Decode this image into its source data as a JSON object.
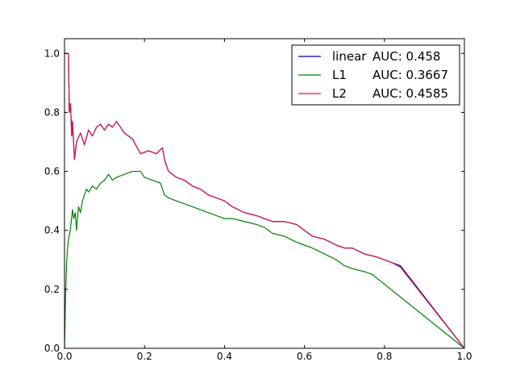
{
  "chart_data": {
    "type": "line",
    "title": "",
    "xlabel": "",
    "ylabel": "",
    "xlim": [
      0.0,
      1.0
    ],
    "ylim": [
      0.0,
      1.05
    ],
    "xticks": [
      "0.0",
      "0.2",
      "0.4",
      "0.6",
      "0.8",
      "1.0"
    ],
    "yticks": [
      "0.0",
      "0.2",
      "0.4",
      "0.6",
      "0.8",
      "1.0"
    ],
    "grid": false,
    "legend_position": "top-right",
    "series": [
      {
        "name": "linear AUC: 0.458",
        "legend_parts": [
          "linear",
          "AUC: 0.458"
        ],
        "color": "#0000aa",
        "x": [
          0.0,
          0.005,
          0.008,
          0.01,
          0.012,
          0.015,
          0.018,
          0.02,
          0.025,
          0.03,
          0.04,
          0.05,
          0.06,
          0.07,
          0.08,
          0.09,
          0.1,
          0.11,
          0.12,
          0.13,
          0.15,
          0.17,
          0.19,
          0.21,
          0.23,
          0.245,
          0.25,
          0.26,
          0.28,
          0.3,
          0.32,
          0.34,
          0.36,
          0.38,
          0.4,
          0.42,
          0.45,
          0.48,
          0.5,
          0.52,
          0.55,
          0.58,
          0.6,
          0.62,
          0.65,
          0.68,
          0.7,
          0.72,
          0.75,
          0.78,
          0.8,
          0.82,
          0.84,
          1.0
        ],
        "y": [
          1.0,
          1.0,
          1.0,
          1.0,
          0.8,
          0.83,
          0.72,
          0.77,
          0.64,
          0.7,
          0.73,
          0.69,
          0.74,
          0.72,
          0.75,
          0.76,
          0.74,
          0.76,
          0.75,
          0.77,
          0.73,
          0.71,
          0.66,
          0.67,
          0.66,
          0.68,
          0.64,
          0.6,
          0.58,
          0.57,
          0.55,
          0.54,
          0.52,
          0.51,
          0.5,
          0.48,
          0.46,
          0.45,
          0.44,
          0.43,
          0.43,
          0.42,
          0.4,
          0.38,
          0.37,
          0.35,
          0.34,
          0.34,
          0.32,
          0.31,
          0.3,
          0.29,
          0.28,
          0.0
        ]
      },
      {
        "name": "L1 AUC: 0.3667",
        "legend_parts": [
          "L1",
          "AUC: 0.3667"
        ],
        "color": "#008000",
        "x": [
          0.0,
          0.003,
          0.005,
          0.007,
          0.01,
          0.013,
          0.016,
          0.02,
          0.023,
          0.027,
          0.03,
          0.035,
          0.04,
          0.045,
          0.05,
          0.055,
          0.06,
          0.07,
          0.08,
          0.09,
          0.1,
          0.11,
          0.12,
          0.13,
          0.15,
          0.17,
          0.19,
          0.2,
          0.22,
          0.24,
          0.25,
          0.26,
          0.28,
          0.3,
          0.32,
          0.34,
          0.36,
          0.38,
          0.4,
          0.42,
          0.45,
          0.48,
          0.5,
          0.52,
          0.55,
          0.58,
          0.6,
          0.62,
          0.65,
          0.68,
          0.7,
          0.72,
          0.75,
          0.77,
          1.0
        ],
        "y": [
          0.0,
          0.2,
          0.28,
          0.33,
          0.37,
          0.39,
          0.42,
          0.47,
          0.44,
          0.46,
          0.4,
          0.48,
          0.46,
          0.5,
          0.52,
          0.54,
          0.53,
          0.55,
          0.54,
          0.56,
          0.57,
          0.59,
          0.57,
          0.58,
          0.59,
          0.6,
          0.6,
          0.58,
          0.57,
          0.56,
          0.52,
          0.51,
          0.5,
          0.49,
          0.48,
          0.47,
          0.46,
          0.45,
          0.44,
          0.44,
          0.43,
          0.42,
          0.41,
          0.39,
          0.38,
          0.36,
          0.35,
          0.34,
          0.32,
          0.3,
          0.28,
          0.27,
          0.26,
          0.25,
          0.0
        ]
      },
      {
        "name": "L2 AUC: 0.4585",
        "legend_parts": [
          "L2",
          "AUC: 0.4585"
        ],
        "color": "#dc143c",
        "x": [
          0.0,
          0.005,
          0.008,
          0.01,
          0.012,
          0.015,
          0.018,
          0.02,
          0.025,
          0.03,
          0.04,
          0.05,
          0.06,
          0.07,
          0.08,
          0.09,
          0.1,
          0.11,
          0.12,
          0.13,
          0.15,
          0.17,
          0.19,
          0.21,
          0.23,
          0.245,
          0.25,
          0.26,
          0.28,
          0.3,
          0.32,
          0.34,
          0.36,
          0.38,
          0.4,
          0.42,
          0.45,
          0.48,
          0.5,
          0.52,
          0.55,
          0.58,
          0.6,
          0.62,
          0.65,
          0.68,
          0.7,
          0.72,
          0.75,
          0.78,
          0.8,
          0.82,
          0.84,
          1.0
        ],
        "y": [
          1.0,
          1.0,
          1.0,
          1.0,
          0.8,
          0.83,
          0.72,
          0.77,
          0.64,
          0.7,
          0.73,
          0.69,
          0.74,
          0.72,
          0.75,
          0.76,
          0.74,
          0.76,
          0.75,
          0.77,
          0.73,
          0.71,
          0.66,
          0.67,
          0.66,
          0.68,
          0.64,
          0.6,
          0.58,
          0.57,
          0.55,
          0.54,
          0.52,
          0.51,
          0.5,
          0.48,
          0.46,
          0.45,
          0.44,
          0.43,
          0.43,
          0.42,
          0.4,
          0.38,
          0.37,
          0.35,
          0.34,
          0.34,
          0.32,
          0.31,
          0.3,
          0.29,
          0.275,
          0.0
        ]
      }
    ]
  }
}
